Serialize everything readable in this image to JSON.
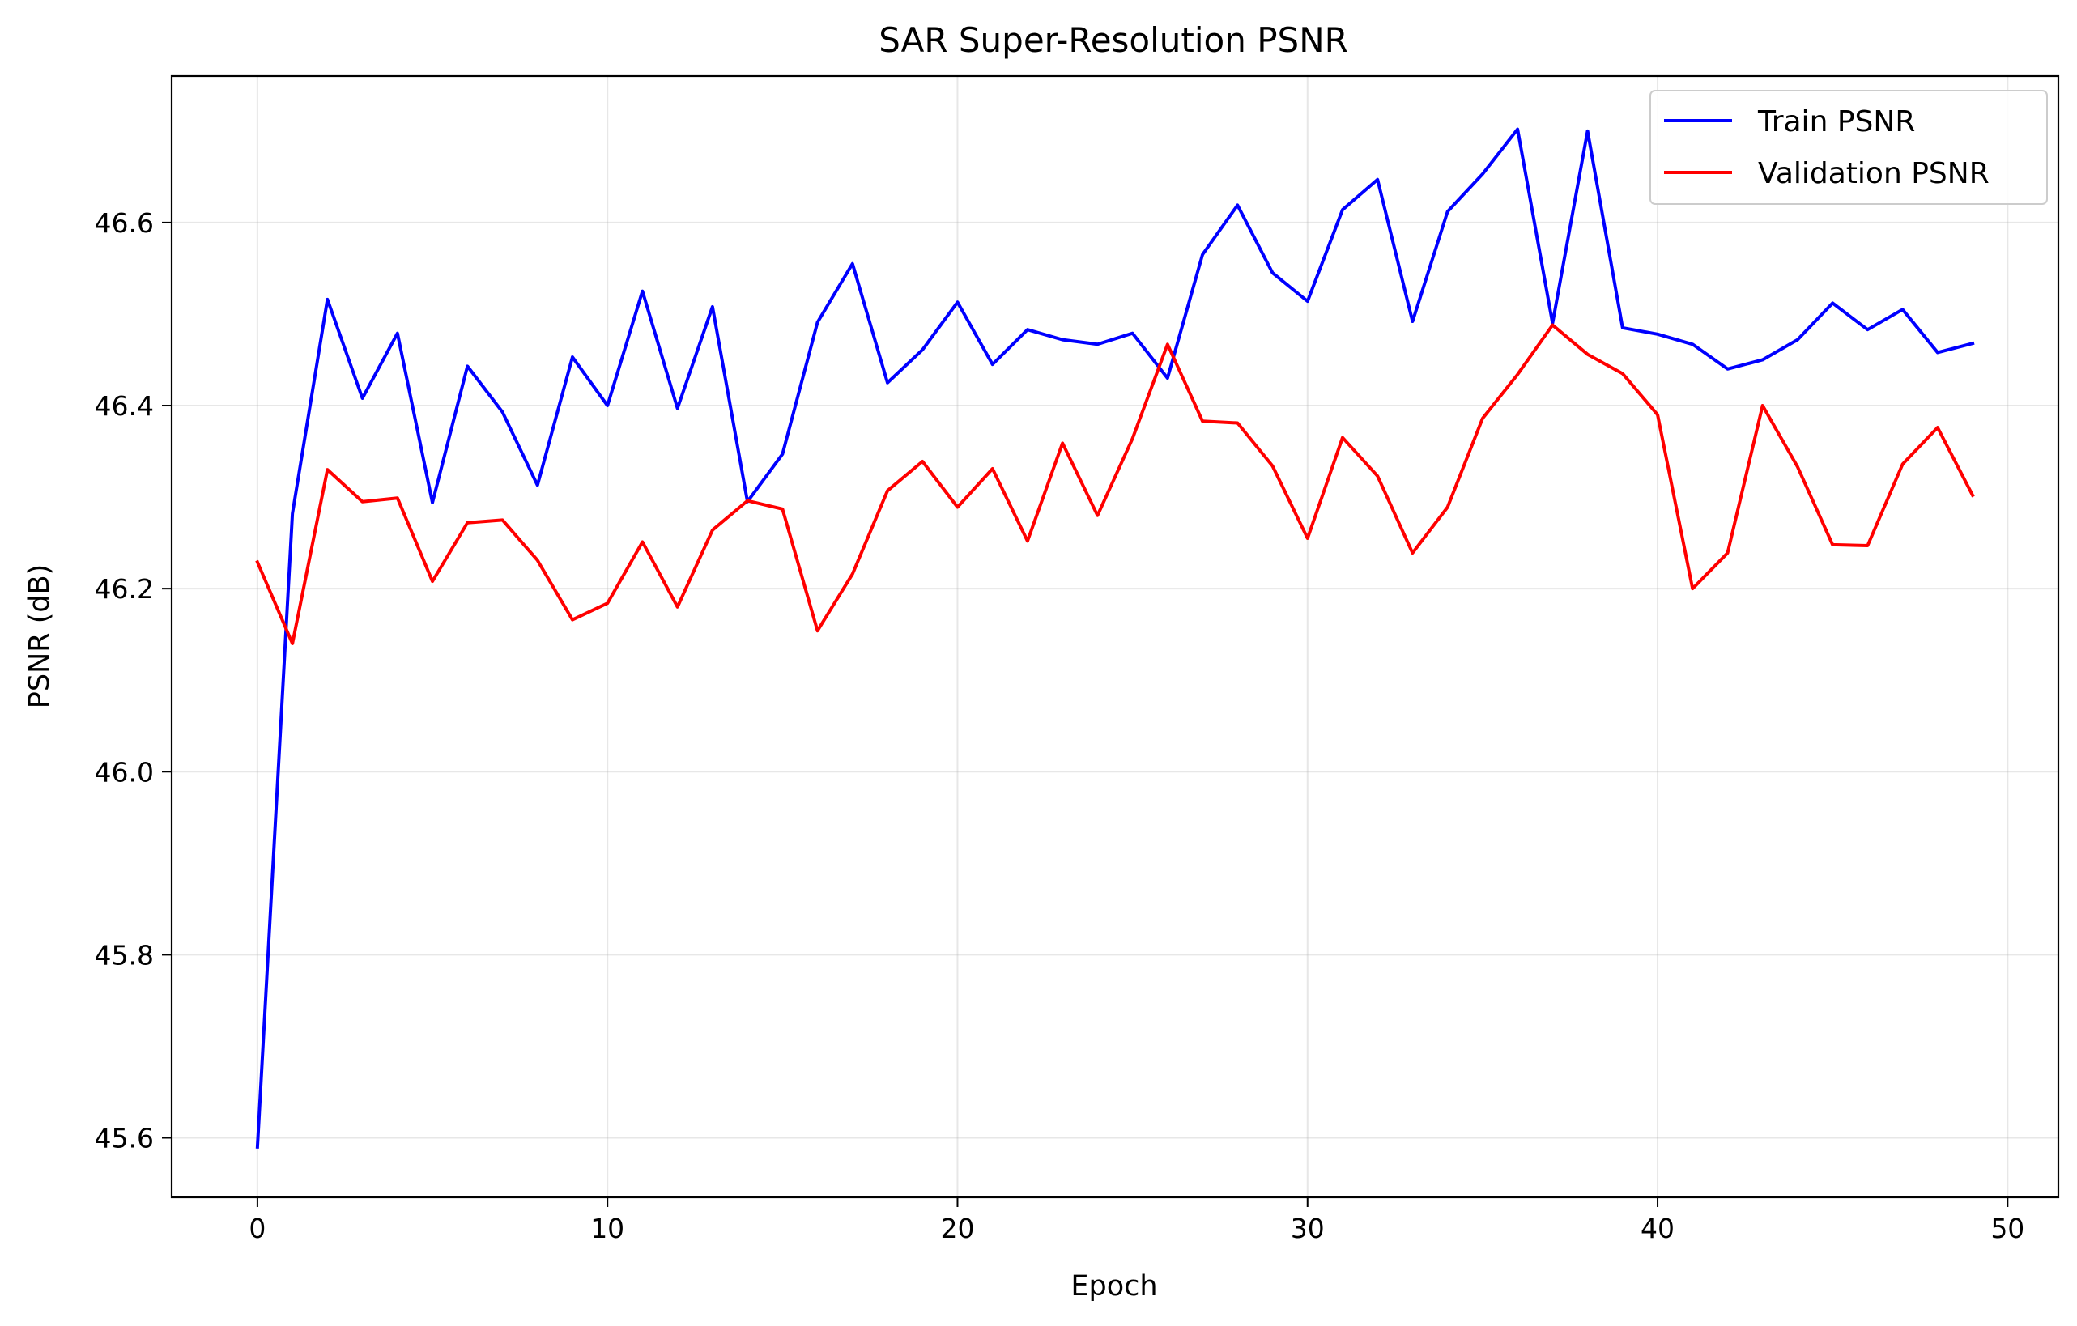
{
  "chart_data": {
    "type": "line",
    "title": "SAR Super-Resolution PSNR",
    "xlabel": "Epoch",
    "ylabel": "PSNR (dB)",
    "xlim": [
      -2.45,
      51.45
    ],
    "ylim": [
      45.535,
      46.76
    ],
    "xticks": [
      0,
      10,
      20,
      30,
      40,
      50
    ],
    "yticks": [
      45.6,
      45.8,
      46.0,
      46.2,
      46.4,
      46.6
    ],
    "xtick_labels": [
      "0",
      "10",
      "20",
      "30",
      "40",
      "50"
    ],
    "ytick_labels": [
      "45.6",
      "45.8",
      "46.0",
      "46.2",
      "46.4",
      "46.6"
    ],
    "grid": true,
    "legend_position": "top-right",
    "x": [
      0,
      1,
      2,
      3,
      4,
      5,
      6,
      7,
      8,
      9,
      10,
      11,
      12,
      13,
      14,
      15,
      16,
      17,
      18,
      19,
      20,
      21,
      22,
      23,
      24,
      25,
      26,
      27,
      28,
      29,
      30,
      31,
      32,
      33,
      34,
      35,
      36,
      37,
      38,
      39,
      40,
      41,
      42,
      43,
      44,
      45,
      46,
      47,
      48,
      49
    ],
    "series": [
      {
        "name": "Train PSNR",
        "color": "#0000ff",
        "values": [
          45.59,
          46.282,
          46.516,
          46.408,
          46.479,
          46.294,
          46.443,
          46.393,
          46.313,
          46.453,
          46.4,
          46.525,
          46.397,
          46.508,
          46.295,
          46.347,
          46.491,
          46.555,
          46.425,
          46.461,
          46.513,
          46.445,
          46.483,
          46.472,
          46.467,
          46.479,
          46.43,
          46.565,
          46.619,
          46.545,
          46.514,
          46.614,
          46.647,
          46.492,
          46.612,
          46.653,
          46.702,
          46.49,
          46.7,
          46.485,
          46.478,
          46.467,
          46.44,
          46.45,
          46.472,
          46.512,
          46.483,
          46.505,
          46.458,
          46.468
        ]
      },
      {
        "name": "Validation PSNR",
        "color": "#ff0000",
        "values": [
          46.229,
          46.14,
          46.33,
          46.295,
          46.299,
          46.208,
          46.272,
          46.275,
          46.231,
          46.166,
          46.184,
          46.251,
          46.18,
          46.264,
          46.296,
          46.287,
          46.154,
          46.216,
          46.307,
          46.339,
          46.289,
          46.331,
          46.252,
          46.359,
          46.28,
          46.364,
          46.467,
          46.383,
          46.381,
          46.334,
          46.255,
          46.365,
          46.323,
          46.239,
          46.289,
          46.386,
          46.434,
          46.488,
          46.456,
          46.435,
          46.39,
          46.2,
          46.239,
          46.4,
          46.333,
          46.248,
          46.247,
          46.336,
          46.376,
          46.302
        ]
      }
    ]
  }
}
